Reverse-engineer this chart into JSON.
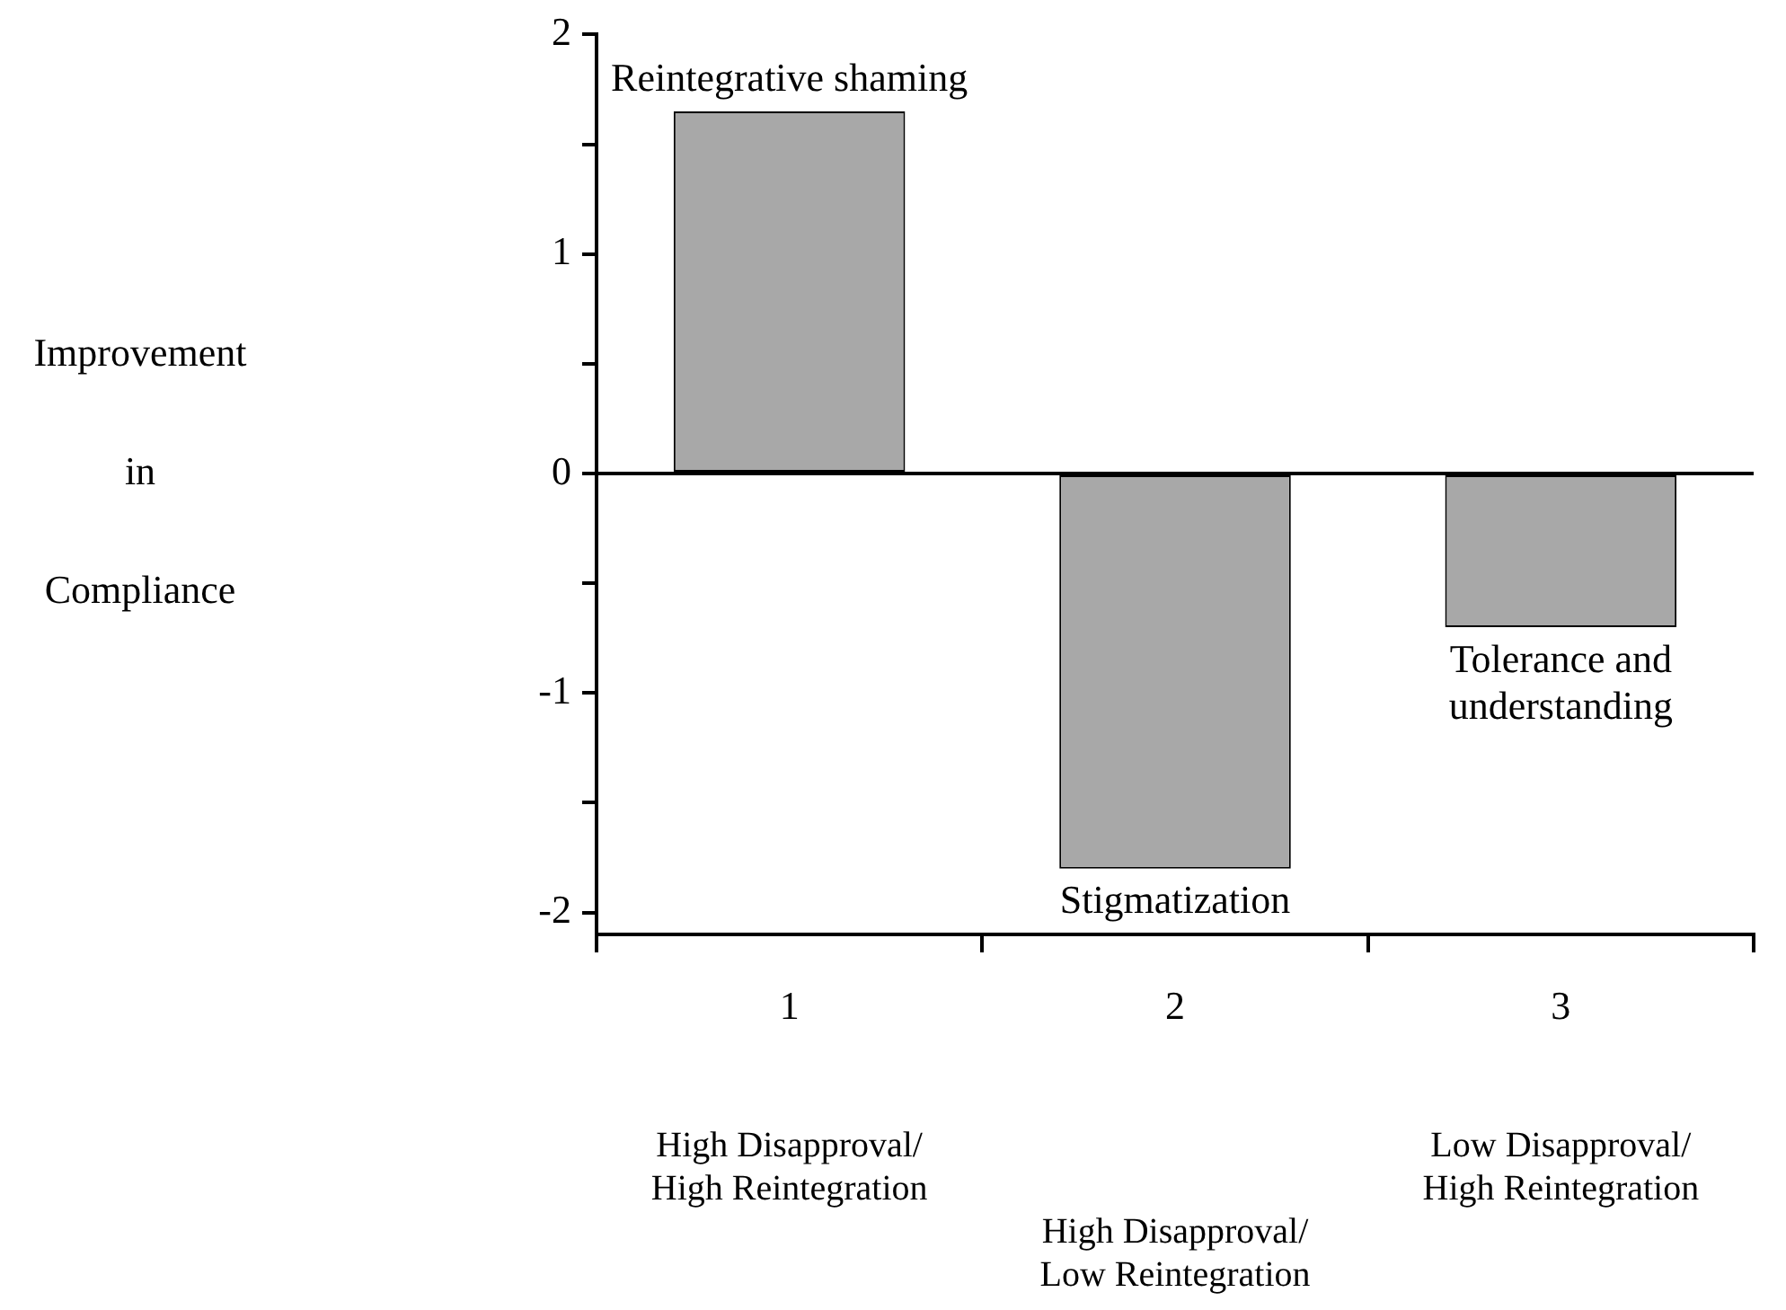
{
  "chart_data": {
    "type": "bar",
    "ylabel": "Improvement in Compliance",
    "categories": [
      "1",
      "2",
      "3"
    ],
    "values": [
      1.65,
      -1.8,
      -0.7
    ],
    "color": "#a8a8a8",
    "ylim": [
      -2.1,
      2
    ],
    "yticks": [
      2,
      {
        "value": 1.5,
        "label": null
      },
      1,
      {
        "value": 0.5,
        "label": null
      },
      0,
      {
        "value": -0.5,
        "label": null
      },
      -1,
      {
        "value": -1.5,
        "label": null
      },
      -2
    ],
    "grid": false,
    "legend": false,
    "ref_lines": [
      {
        "axis": "y",
        "value": 0,
        "color": "#000000"
      }
    ],
    "annotations": [
      {
        "text": "Reintegrative shaming",
        "x": "1",
        "y": 1.65
      },
      {
        "text": "Stigmatization",
        "x": "2",
        "y": -1.8
      },
      {
        "text": "Tolerance and understanding",
        "x": "3",
        "y": -0.7
      },
      "High Disapproval/\nHigh Reintegration",
      "High Disapproval/\nLow Reintegration",
      "Low Disapproval/\nHigh Reintegration"
    ]
  }
}
